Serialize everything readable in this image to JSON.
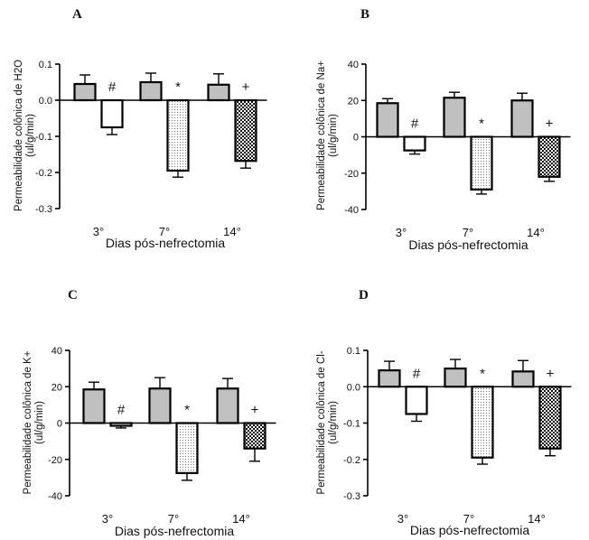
{
  "colors": {
    "control": "#c0c0c0",
    "day3": "#ffffff",
    "day7": "#f4f4f4",
    "day14": "#1a1a1a"
  },
  "chart_data": [
    {
      "type": "bar",
      "panel": "A",
      "categories": [
        "3°",
        "7°",
        "14°"
      ],
      "xlabel": "Dias pós-nefrectomia",
      "ylabel": [
        "Permeabilidade colônica de H2O",
        "(ul/g/min)"
      ],
      "ylim": [
        -0.3,
        0.1
      ],
      "yticks": [
        0.1,
        0.0,
        -0.1,
        -0.2,
        -0.3
      ],
      "ytick_labels": [
        "0.1",
        "0.0",
        "-0.1",
        "-0.2",
        "-0.3"
      ],
      "series": [
        {
          "role": "control",
          "fill": "gray",
          "values": [
            0.045,
            0.05,
            0.043
          ],
          "errors": [
            0.025,
            0.025,
            0.03
          ]
        },
        {
          "role": "nephrectomy",
          "fill": [
            "white",
            "dotted",
            "checkered"
          ],
          "values": [
            -0.075,
            -0.195,
            -0.168
          ],
          "errors": [
            0.02,
            0.018,
            0.02
          ]
        }
      ],
      "annotations": [
        "#",
        "*",
        "+"
      ]
    },
    {
      "type": "bar",
      "panel": "B",
      "categories": [
        "3°",
        "7°",
        "14°"
      ],
      "xlabel": "Dias pós-nefrectomia",
      "ylabel": [
        "Permeabilidade colônica de Na+",
        "(ul/g/min)"
      ],
      "ylim": [
        -40,
        40
      ],
      "yticks": [
        40,
        20,
        0,
        -20,
        -40
      ],
      "ytick_labels": [
        "40",
        "20",
        "0",
        "-20",
        "-40"
      ],
      "series": [
        {
          "role": "control",
          "fill": "gray",
          "values": [
            18.5,
            21.5,
            20
          ],
          "errors": [
            2.5,
            3,
            4
          ]
        },
        {
          "role": "nephrectomy",
          "fill": [
            "white",
            "dotted",
            "checkered"
          ],
          "values": [
            -7.5,
            -29,
            -22
          ],
          "errors": [
            2,
            2.5,
            2.5
          ]
        }
      ],
      "annotations": [
        "#",
        "*",
        "+"
      ]
    },
    {
      "type": "bar",
      "panel": "C",
      "categories": [
        "3°",
        "7°",
        "14°"
      ],
      "xlabel": "Dias pós-nefrectomia",
      "ylabel": [
        "Permeabilidade colônica de K+",
        "(ul/g/min)"
      ],
      "ylim": [
        -40,
        40
      ],
      "yticks": [
        40,
        20,
        0,
        -20,
        -40
      ],
      "ytick_labels": [
        "40",
        "20",
        "0",
        "-20",
        "-40"
      ],
      "series": [
        {
          "role": "control",
          "fill": "gray",
          "values": [
            18.5,
            19,
            19
          ],
          "errors": [
            4,
            6,
            5.5
          ]
        },
        {
          "role": "nephrectomy",
          "fill": [
            "white",
            "dotted",
            "checkered"
          ],
          "values": [
            -1.5,
            -27.5,
            -14
          ],
          "errors": [
            1.2,
            4,
            7
          ]
        }
      ],
      "annotations": [
        "#",
        "*",
        "+"
      ]
    },
    {
      "type": "bar",
      "panel": "D",
      "categories": [
        "3°",
        "7°",
        "14°"
      ],
      "xlabel": "Dias pós-nefrectomia",
      "ylabel": [
        "Permeabilidade colônica de Cl-",
        "(ul/g/min)"
      ],
      "ylim": [
        -0.3,
        0.1
      ],
      "yticks": [
        0.1,
        0.0,
        -0.1,
        -0.2,
        -0.3
      ],
      "ytick_labels": [
        "0.1",
        "0.0",
        "-0.1",
        "-0.2",
        "-0.3"
      ],
      "series": [
        {
          "role": "control",
          "fill": "gray",
          "values": [
            0.045,
            0.05,
            0.042
          ],
          "errors": [
            0.025,
            0.025,
            0.03
          ]
        },
        {
          "role": "nephrectomy",
          "fill": [
            "white",
            "dotted",
            "checkered"
          ],
          "values": [
            -0.075,
            -0.195,
            -0.17
          ],
          "errors": [
            0.02,
            0.018,
            0.02
          ]
        }
      ],
      "annotations": [
        "#",
        "*",
        "+"
      ]
    }
  ]
}
